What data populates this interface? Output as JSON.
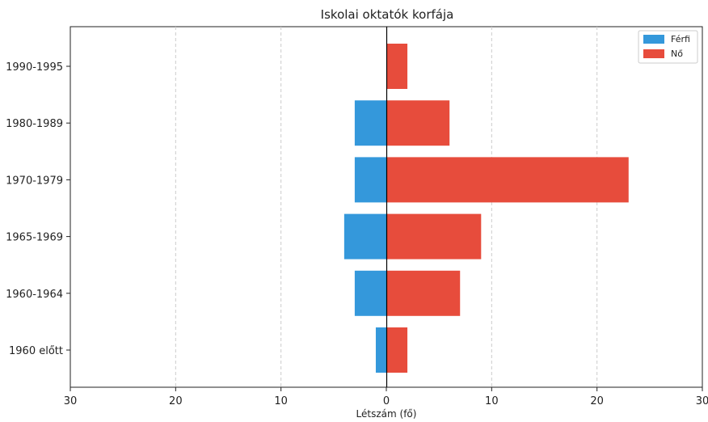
{
  "chart_data": {
    "type": "bar",
    "orientation": "horizontal",
    "title": "Iskolai oktatók korfája",
    "xlabel": "Létszám (fő)",
    "ylabel": "",
    "categories": [
      "1990-1995",
      "1980-1989",
      "1970-1979",
      "1965-1969",
      "1960-1964",
      "1960 előtt"
    ],
    "series": [
      {
        "name": "Férfi",
        "values": [
          0,
          3,
          3,
          4,
          3,
          1
        ],
        "color": "#3498db",
        "side": "left"
      },
      {
        "name": "Nő",
        "values": [
          2,
          6,
          23,
          9,
          7,
          2
        ],
        "color": "#e74c3c",
        "side": "right"
      }
    ],
    "xlim": [
      -30,
      30
    ],
    "xticks": [
      -30,
      -20,
      -10,
      0,
      10,
      20,
      30
    ],
    "xtick_labels": [
      "30",
      "20",
      "10",
      "0",
      "10",
      "20",
      "30"
    ],
    "grid": "vertical dashed",
    "legend_position": "top-right"
  }
}
